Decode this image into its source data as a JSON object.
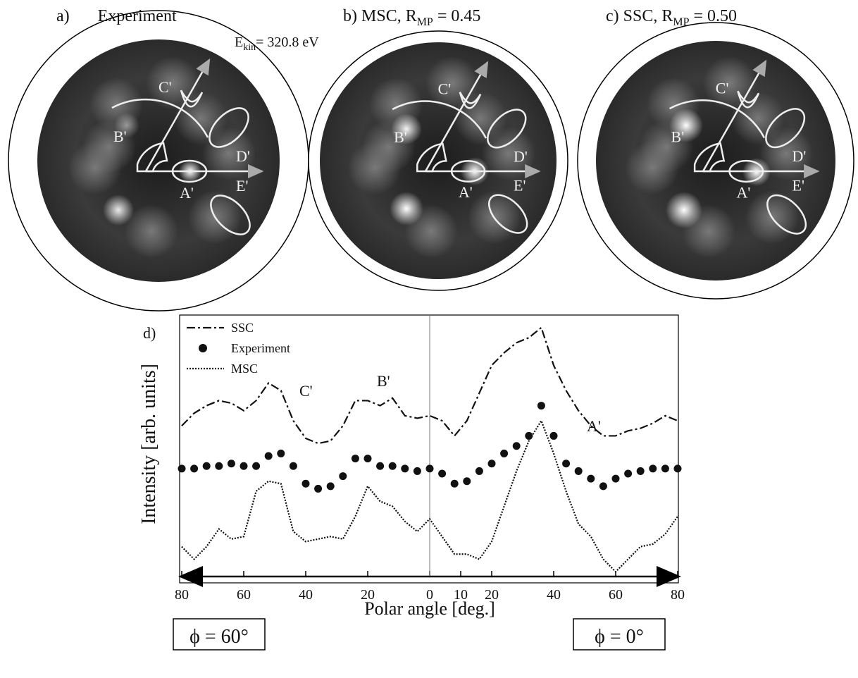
{
  "panels": [
    {
      "label": "a)",
      "title": "Experiment"
    },
    {
      "label": "b)",
      "title": "MSC, R",
      "sub": "MP",
      "rest": " = 0.45"
    },
    {
      "label": "c)",
      "title": "SSC, R",
      "sub": "MP",
      "rest": " = 0.50"
    }
  ],
  "energy": {
    "text": "E",
    "sub": "kin",
    "rest": "= 320.8 eV"
  },
  "feature_labels": [
    "A'",
    "B'",
    "C'",
    "D'",
    "E'"
  ],
  "chart_data": {
    "type": "line",
    "panel_label": "d)",
    "xlabel": "Polar angle [deg.]",
    "ylabel": "Intensity [arb. units]",
    "x": [
      -80,
      -76,
      -72,
      -68,
      -64,
      -60,
      -56,
      -52,
      -48,
      -44,
      -40,
      -36,
      -32,
      -28,
      -24,
      -20,
      -16,
      -12,
      -8,
      -4,
      0,
      4,
      8,
      12,
      16,
      20,
      24,
      28,
      32,
      36,
      40,
      44,
      48,
      52,
      56,
      60,
      64,
      68,
      72,
      76,
      80
    ],
    "xlim": [
      -80,
      80
    ],
    "xticks": [
      {
        "value": -80,
        "label": "80"
      },
      {
        "value": -60,
        "label": "60"
      },
      {
        "value": -40,
        "label": "40"
      },
      {
        "value": -20,
        "label": "20"
      },
      0,
      10,
      20,
      40,
      60,
      80
    ],
    "ylim": [
      -5,
      100
    ],
    "series": [
      {
        "name": "SSC",
        "style": "dashdot",
        "color": "#111111",
        "values": [
          56,
          61,
          64,
          66,
          65,
          62,
          66,
          73,
          70,
          58,
          51,
          49,
          50,
          56,
          66,
          66,
          64,
          67,
          60,
          59,
          60,
          58,
          52,
          58,
          69,
          80,
          85,
          89,
          91,
          95,
          80,
          70,
          62,
          56,
          52,
          52,
          54,
          55,
          57,
          60,
          58
        ]
      },
      {
        "name": "Experiment",
        "style": "markers",
        "color": "#111111",
        "values": [
          39,
          39,
          40,
          40,
          41,
          40,
          40,
          44,
          45,
          40,
          33,
          31,
          32,
          36,
          43,
          43,
          40,
          40,
          39,
          38,
          39,
          37,
          33,
          34,
          38,
          41,
          45,
          48,
          52,
          64,
          52,
          41,
          38,
          35,
          32,
          35,
          37,
          38,
          39,
          39,
          39
        ]
      },
      {
        "name": "MSC",
        "style": "dotted",
        "color": "#111111",
        "values": [
          8,
          3,
          8,
          15,
          11,
          12,
          30,
          34,
          33,
          14,
          10,
          11,
          12,
          11,
          20,
          32,
          26,
          24,
          18,
          14,
          19,
          12,
          5,
          5,
          3,
          10,
          24,
          38,
          50,
          58,
          45,
          30,
          17,
          12,
          3,
          -2,
          3,
          8,
          9,
          13,
          20
        ]
      }
    ],
    "annotations": [
      "C'",
      "B'",
      "A'"
    ],
    "direction_labels": [
      "ϕ = 60°",
      "ϕ = 0°"
    ]
  }
}
